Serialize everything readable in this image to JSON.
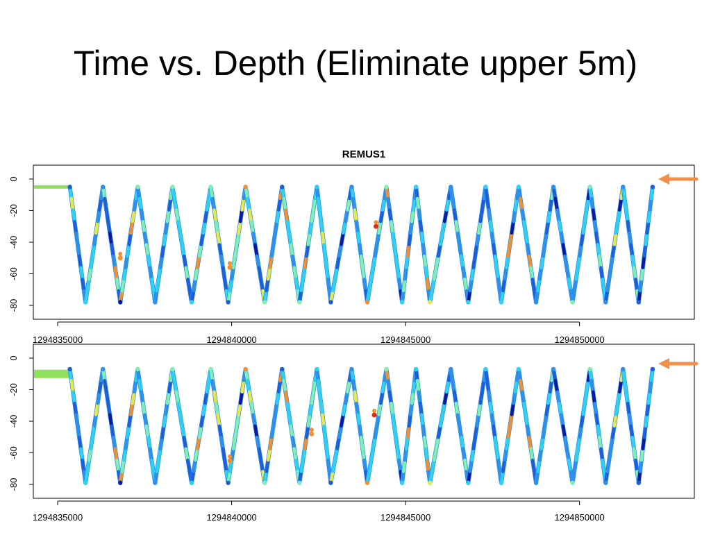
{
  "slide": {
    "title": "Time vs. Depth (Eliminate upper 5m)"
  },
  "colors": {
    "arrow": "#f0904a",
    "shallow_segment": "#8fe05a",
    "scale": [
      "#0a1aa0",
      "#1e5fd8",
      "#2f90ea",
      "#2fd0f0",
      "#7ff0b0",
      "#e8e84a",
      "#f09030",
      "#e02810"
    ]
  },
  "chart_data": [
    {
      "type": "scatter",
      "title": "REMUS1",
      "xlabel": "",
      "ylabel": "",
      "xlim": [
        1294834300,
        1294853300
      ],
      "ylim": [
        -84,
        8
      ],
      "x_ticks": [
        1294835000,
        1294840000,
        1294845000,
        1294850000
      ],
      "x_tick_labels": [
        "1294835000",
        "1294840000",
        "1294845000",
        "1294850000"
      ],
      "y_ticks": [
        0,
        -20,
        -40,
        -60,
        -80
      ],
      "y_tick_labels": [
        "0",
        "-20",
        "-40",
        "-60",
        "-80"
      ],
      "grid": false,
      "surface_segment": {
        "x": [
          1294834300,
          1294835300
        ],
        "y": -5
      },
      "profile_vertices": {
        "x": [
          1294835350,
          1294835800,
          1294836300,
          1294836800,
          1294837300,
          1294837800,
          1294838300,
          1294838850,
          1294839400,
          1294839900,
          1294840400,
          1294840950,
          1294841450,
          1294841950,
          1294842450,
          1294842850,
          1294843450,
          1294843900,
          1294844450,
          1294844900,
          1294845300,
          1294845700,
          1294846300,
          1294846800,
          1294847300,
          1294847750,
          1294848250,
          1294848750,
          1294849250,
          1294849800,
          1294850300,
          1294850750,
          1294851250,
          1294851700,
          1294852100
        ],
        "y": [
          -5,
          -78,
          -5,
          -78,
          -5,
          -78,
          -5,
          -78,
          -5,
          -78,
          -5,
          -78,
          -5,
          -78,
          -5,
          -78,
          -5,
          -78,
          -5,
          -78,
          -5,
          -78,
          -5,
          -78,
          -5,
          -78,
          -5,
          -78,
          -5,
          -78,
          -5,
          -78,
          -5,
          -78,
          -5
        ]
      },
      "high_value_spots": [
        {
          "x": 1294844150,
          "y": -30
        },
        {
          "x": 1294839950,
          "y": -56
        },
        {
          "x": 1294836800,
          "y": -50
        }
      ]
    },
    {
      "type": "scatter",
      "title": "",
      "xlabel": "",
      "ylabel": "",
      "xlim": [
        1294834300,
        1294853300
      ],
      "ylim": [
        -84,
        8
      ],
      "x_ticks": [
        1294835000,
        1294840000,
        1294845000,
        1294850000
      ],
      "x_tick_labels": [
        "1294835000",
        "1294840000",
        "1294845000",
        "1294850000"
      ],
      "y_ticks": [
        0,
        -20,
        -40,
        -60,
        -80
      ],
      "y_tick_labels": [
        "0",
        "-20",
        "-40",
        "-60",
        "-80"
      ],
      "grid": false,
      "surface_segment": {
        "x": [
          1294834300,
          1294835300
        ],
        "y": -10
      },
      "profile_vertices": {
        "x": [
          1294835350,
          1294835800,
          1294836300,
          1294836800,
          1294837300,
          1294837800,
          1294838300,
          1294838850,
          1294839400,
          1294839900,
          1294840400,
          1294840950,
          1294841450,
          1294841950,
          1294842450,
          1294842850,
          1294843450,
          1294843900,
          1294844450,
          1294844900,
          1294845300,
          1294845700,
          1294846300,
          1294846800,
          1294847300,
          1294847750,
          1294848250,
          1294848750,
          1294849250,
          1294849800,
          1294850300,
          1294850750,
          1294851250,
          1294851700,
          1294852100
        ],
        "y": [
          -7,
          -79,
          -7,
          -79,
          -7,
          -79,
          -7,
          -79,
          -7,
          -79,
          -7,
          -79,
          -7,
          -79,
          -7,
          -79,
          -7,
          -79,
          -7,
          -79,
          -7,
          -79,
          -7,
          -79,
          -7,
          -79,
          -7,
          -79,
          -7,
          -79,
          -7,
          -79,
          -7,
          -79,
          -7
        ]
      },
      "high_value_spots": [
        {
          "x": 1294844100,
          "y": -36
        },
        {
          "x": 1294839950,
          "y": -65
        },
        {
          "x": 1294842300,
          "y": -48
        }
      ]
    }
  ]
}
